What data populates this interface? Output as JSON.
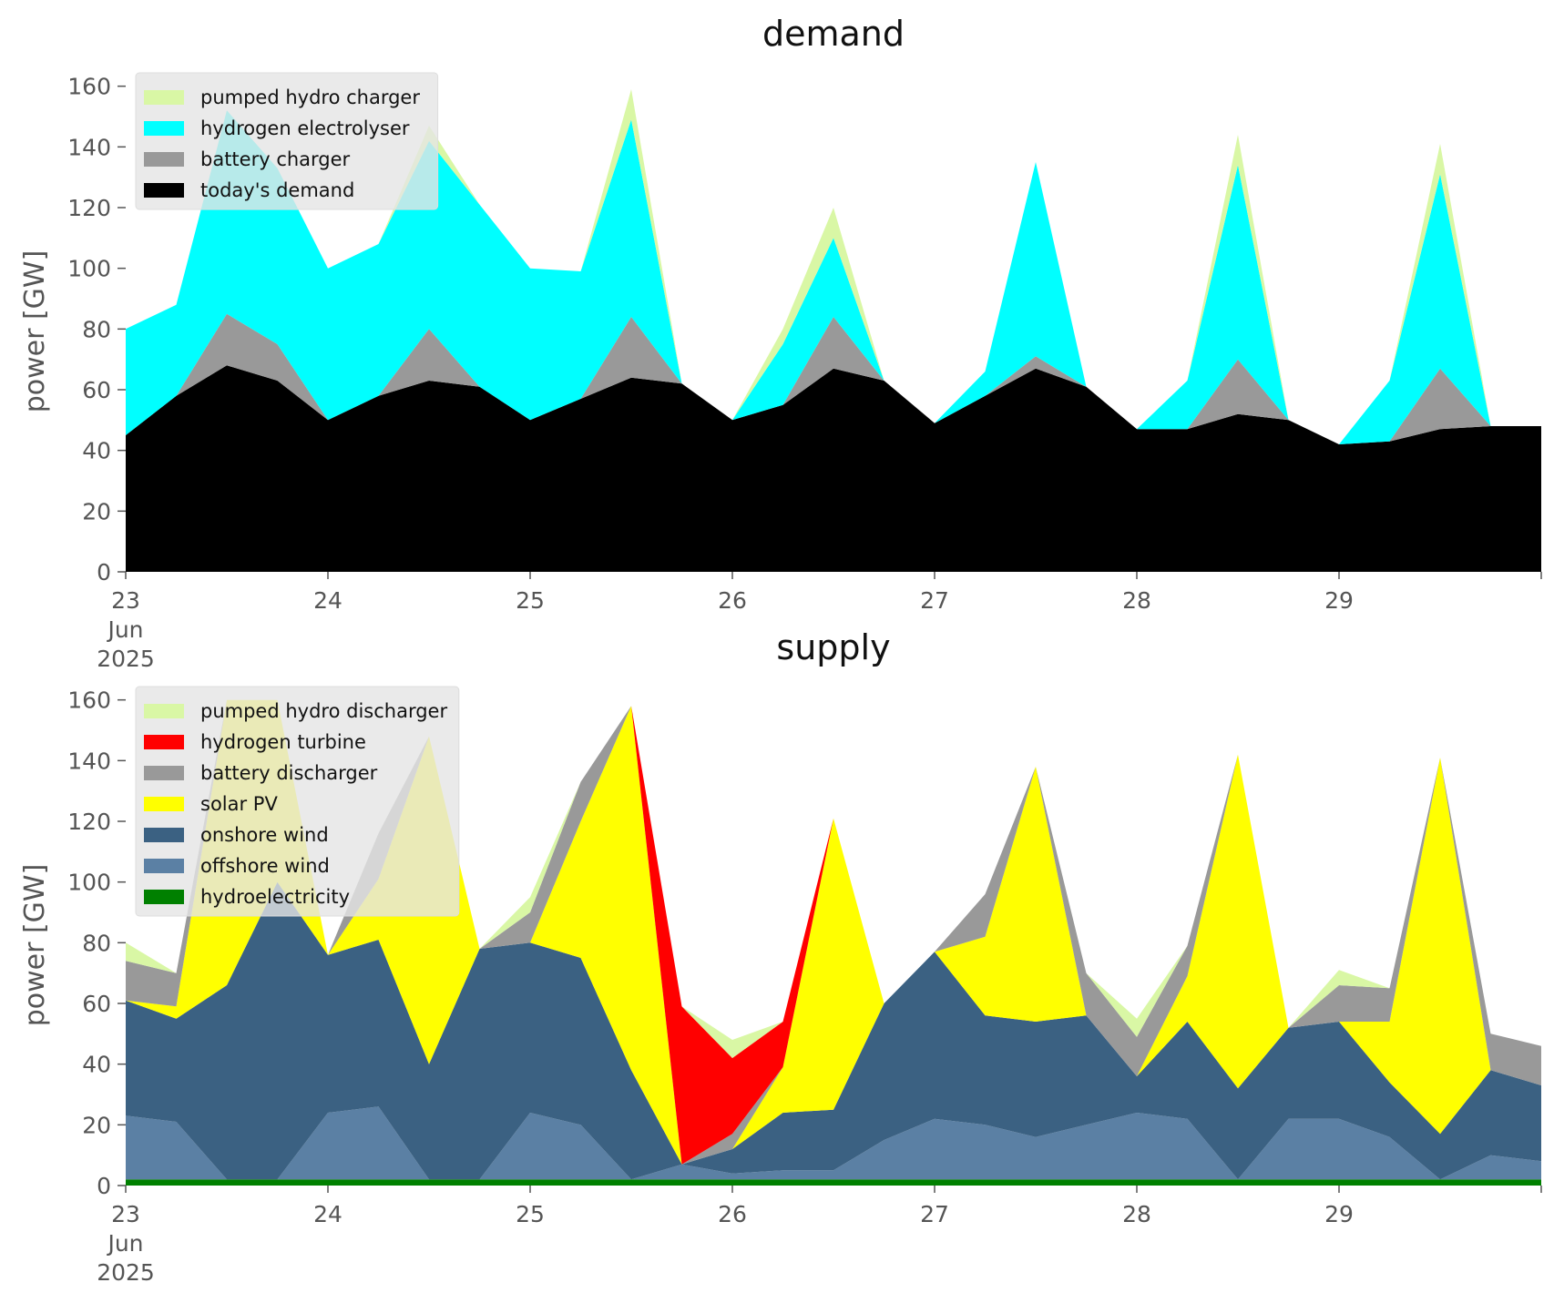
{
  "chart_data": [
    {
      "type": "area",
      "stacked": true,
      "title": "demand",
      "xlabel": "",
      "ylabel": "power [GW]",
      "ylim": [
        0,
        165
      ],
      "yticks": [
        0,
        20,
        40,
        60,
        80,
        100,
        120,
        140,
        160
      ],
      "x_range_days": [
        "2025-06-23",
        "2025-06-30"
      ],
      "x_tick_labels": [
        {
          "value": "2025-06-23",
          "lines": [
            "23",
            "Jun",
            "2025"
          ]
        },
        {
          "value": "2025-06-24",
          "lines": [
            "24"
          ]
        },
        {
          "value": "2025-06-25",
          "lines": [
            "25"
          ]
        },
        {
          "value": "2025-06-26",
          "lines": [
            "26"
          ]
        },
        {
          "value": "2025-06-27",
          "lines": [
            "27"
          ]
        },
        {
          "value": "2025-06-28",
          "lines": [
            "28"
          ]
        },
        {
          "value": "2025-06-29",
          "lines": [
            "29"
          ]
        }
      ],
      "grid": false,
      "legend_position": "top-left",
      "legend": [
        "pumped hydro charger",
        "hydrogen electrolyser",
        "battery charger",
        "today's demand"
      ],
      "x": [
        "2025-06-23 00:00",
        "2025-06-23 06:00",
        "2025-06-23 12:00",
        "2025-06-23 18:00",
        "2025-06-24 00:00",
        "2025-06-24 06:00",
        "2025-06-24 12:00",
        "2025-06-24 18:00",
        "2025-06-25 00:00",
        "2025-06-25 06:00",
        "2025-06-25 12:00",
        "2025-06-25 18:00",
        "2025-06-26 00:00",
        "2025-06-26 06:00",
        "2025-06-26 12:00",
        "2025-06-26 18:00",
        "2025-06-27 00:00",
        "2025-06-27 06:00",
        "2025-06-27 12:00",
        "2025-06-27 18:00",
        "2025-06-28 00:00",
        "2025-06-28 06:00",
        "2025-06-28 12:00",
        "2025-06-28 18:00",
        "2025-06-29 00:00",
        "2025-06-29 06:00",
        "2025-06-29 12:00",
        "2025-06-29 18:00",
        "2025-06-30 00:00"
      ],
      "series": [
        {
          "name": "today's demand",
          "color": "#000000",
          "values": [
            45,
            58,
            68,
            63,
            50,
            58,
            63,
            61,
            50,
            57,
            64,
            62,
            50,
            55,
            67,
            63,
            49,
            58,
            67,
            61,
            47,
            47,
            52,
            50,
            42,
            43,
            47,
            48,
            48
          ]
        },
        {
          "name": "battery charger",
          "color": "#999999",
          "values": [
            0,
            0,
            17,
            12,
            0,
            0,
            17,
            0,
            0,
            0,
            20,
            0,
            0,
            0,
            17,
            0,
            0,
            0,
            4,
            0,
            0,
            0,
            18,
            0,
            0,
            0,
            20,
            0,
            0
          ]
        },
        {
          "name": "hydrogen electrolyser",
          "color": "#00ffff",
          "values": [
            35,
            30,
            67,
            58,
            50,
            50,
            62,
            60,
            50,
            42,
            65,
            0,
            0,
            20,
            26,
            0,
            0,
            8,
            64,
            0,
            0,
            16,
            64,
            0,
            0,
            20,
            64,
            0,
            0
          ]
        },
        {
          "name": "pumped hydro charger",
          "color": "#d9f7a5",
          "values": [
            0,
            0,
            0,
            0,
            0,
            0,
            5,
            0,
            0,
            0,
            10,
            0,
            0,
            5,
            10,
            0,
            0,
            0,
            0,
            0,
            0,
            0,
            10,
            0,
            0,
            0,
            10,
            0,
            0
          ]
        }
      ]
    },
    {
      "type": "area",
      "stacked": true,
      "title": "supply",
      "xlabel": "",
      "ylabel": "power [GW]",
      "ylim": [
        0,
        165
      ],
      "yticks": [
        0,
        20,
        40,
        60,
        80,
        100,
        120,
        140,
        160
      ],
      "x_range_days": [
        "2025-06-23",
        "2025-06-30"
      ],
      "x_tick_labels": [
        {
          "value": "2025-06-23",
          "lines": [
            "23",
            "Jun",
            "2025"
          ]
        },
        {
          "value": "2025-06-24",
          "lines": [
            "24"
          ]
        },
        {
          "value": "2025-06-25",
          "lines": [
            "25"
          ]
        },
        {
          "value": "2025-06-26",
          "lines": [
            "26"
          ]
        },
        {
          "value": "2025-06-27",
          "lines": [
            "27"
          ]
        },
        {
          "value": "2025-06-28",
          "lines": [
            "28"
          ]
        },
        {
          "value": "2025-06-29",
          "lines": [
            "29"
          ]
        }
      ],
      "grid": false,
      "legend_position": "top-left",
      "legend": [
        "pumped hydro discharger",
        "hydrogen turbine",
        "battery discharger",
        "solar PV",
        "onshore wind",
        "offshore wind",
        "hydroelectricity"
      ],
      "x": [
        "2025-06-23 00:00",
        "2025-06-23 06:00",
        "2025-06-23 12:00",
        "2025-06-23 18:00",
        "2025-06-24 00:00",
        "2025-06-24 06:00",
        "2025-06-24 12:00",
        "2025-06-24 18:00",
        "2025-06-25 00:00",
        "2025-06-25 06:00",
        "2025-06-25 12:00",
        "2025-06-25 18:00",
        "2025-06-26 00:00",
        "2025-06-26 06:00",
        "2025-06-26 12:00",
        "2025-06-26 18:00",
        "2025-06-27 00:00",
        "2025-06-27 06:00",
        "2025-06-27 12:00",
        "2025-06-27 18:00",
        "2025-06-28 00:00",
        "2025-06-28 06:00",
        "2025-06-28 12:00",
        "2025-06-28 18:00",
        "2025-06-29 00:00",
        "2025-06-29 06:00",
        "2025-06-29 12:00",
        "2025-06-29 18:00",
        "2025-06-30 00:00"
      ],
      "series": [
        {
          "name": "hydroelectricity",
          "color": "#008000",
          "values": [
            2,
            2,
            2,
            2,
            2,
            2,
            2,
            2,
            2,
            2,
            2,
            2,
            2,
            2,
            2,
            2,
            2,
            2,
            2,
            2,
            2,
            2,
            2,
            2,
            2,
            2,
            2,
            2,
            2
          ]
        },
        {
          "name": "offshore wind",
          "color": "#5b80a4",
          "values": [
            21,
            19,
            0,
            0,
            22,
            24,
            0,
            0,
            22,
            18,
            0,
            5,
            2,
            3,
            3,
            13,
            20,
            18,
            14,
            18,
            22,
            20,
            0,
            20,
            20,
            14,
            0,
            8,
            6
          ]
        },
        {
          "name": "onshore wind",
          "color": "#3b6182",
          "values": [
            38,
            34,
            64,
            98,
            52,
            55,
            38,
            76,
            56,
            55,
            36,
            0,
            8,
            19,
            20,
            45,
            55,
            36,
            38,
            36,
            12,
            32,
            30,
            30,
            32,
            18,
            15,
            28,
            25
          ]
        },
        {
          "name": "solar PV",
          "color": "#ffff00",
          "values": [
            0,
            4,
            94,
            60,
            0,
            20,
            108,
            0,
            0,
            45,
            120,
            0,
            0,
            15,
            96,
            0,
            0,
            26,
            84,
            0,
            0,
            15,
            110,
            0,
            0,
            20,
            124,
            0,
            0
          ]
        },
        {
          "name": "battery discharger",
          "color": "#999999",
          "values": [
            13,
            11,
            0,
            0,
            0,
            15,
            0,
            0,
            10,
            13,
            0,
            0,
            5,
            0,
            0,
            0,
            0,
            14,
            0,
            14,
            13,
            10,
            0,
            0,
            12,
            11,
            0,
            12,
            13
          ]
        },
        {
          "name": "hydrogen turbine",
          "color": "#ff0000",
          "values": [
            0,
            0,
            0,
            0,
            0,
            0,
            0,
            0,
            0,
            0,
            0,
            52,
            25,
            15,
            0,
            0,
            0,
            0,
            0,
            0,
            0,
            0,
            0,
            0,
            0,
            0,
            0,
            0,
            0
          ]
        },
        {
          "name": "pumped hydro discharger",
          "color": "#d9f7a5",
          "values": [
            6,
            0,
            0,
            0,
            0,
            0,
            0,
            0,
            5,
            0,
            0,
            0,
            6,
            0,
            0,
            0,
            0,
            0,
            0,
            0,
            6,
            0,
            0,
            0,
            5,
            0,
            0,
            0,
            0
          ]
        }
      ]
    }
  ]
}
